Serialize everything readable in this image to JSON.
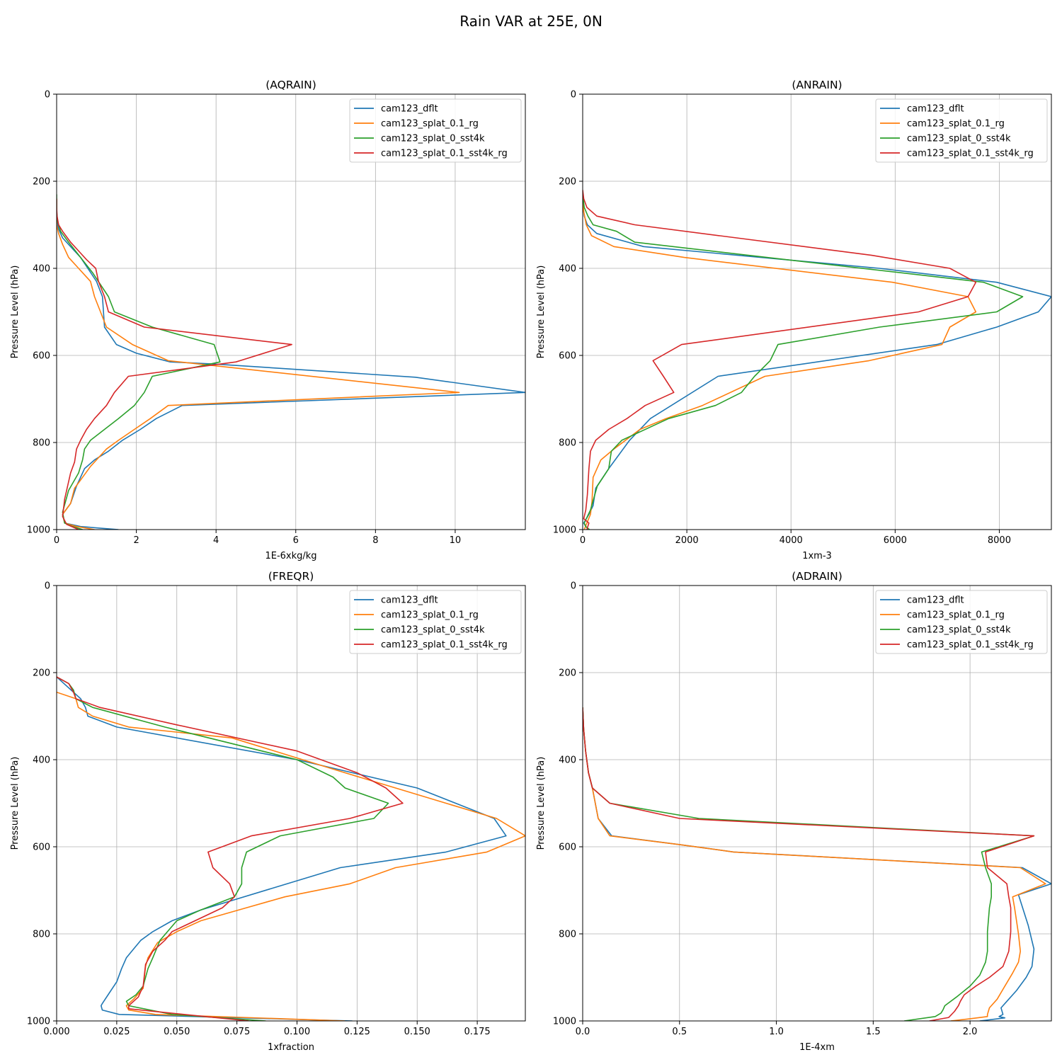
{
  "figure": {
    "title": "Rain VAR at 25E, 0N"
  },
  "series_colors": {
    "cam123_dflt": "#1f77b4",
    "cam123_splat_0.1_rg": "#ff7f0e",
    "cam123_splat_0_sst4k": "#2ca02c",
    "cam123_splat_0.1_sst4k_rg": "#d62728"
  },
  "chart_data": [
    {
      "type": "line",
      "title": "(AQRAIN)",
      "xlabel": "1E-6xkg/kg",
      "ylabel": "Pressure Level (hPa)",
      "xlim": [
        0,
        11.76
      ],
      "ylim": [
        1000,
        0
      ],
      "xticks": [
        0,
        2,
        4,
        6,
        8,
        10
      ],
      "xtick_labels": [
        "0",
        "2",
        "4",
        "6",
        "8",
        "10"
      ],
      "yticks": [
        0,
        200,
        400,
        600,
        800,
        1000
      ],
      "grid": true,
      "legend": "top-right",
      "series": [
        {
          "name": "cam123_dflt",
          "x": [
            0.0,
            0.0,
            0.01,
            0.05,
            0.15,
            0.35,
            0.6,
            1.0,
            1.15,
            1.2,
            1.5,
            2.0,
            2.85,
            4.0,
            9.0,
            11.76,
            3.15,
            2.5,
            2.1,
            1.65,
            1.3,
            0.95,
            0.7,
            0.5,
            0.35,
            0.15,
            0.2,
            0.6,
            1.55
          ],
          "y": [
            240,
            260,
            290,
            310,
            330,
            350,
            375,
            430,
            465,
            535,
            575,
            595,
            615,
            620,
            650,
            685,
            715,
            745,
            770,
            795,
            820,
            840,
            860,
            900,
            940,
            965,
            985,
            993,
            1000
          ]
        },
        {
          "name": "cam123_splat_0.1_rg",
          "x": [
            0.0,
            0.0,
            0.0,
            0.05,
            0.15,
            0.3,
            0.55,
            0.85,
            0.95,
            1.25,
            1.9,
            2.8,
            10.1,
            2.8,
            2.35,
            1.95,
            1.55,
            1.25,
            1.05,
            0.85,
            0.65,
            0.45,
            0.35,
            0.15,
            0.2,
            0.5,
            0.95
          ],
          "y": [
            240,
            270,
            300,
            320,
            345,
            375,
            400,
            430,
            465,
            535,
            575,
            612,
            685,
            715,
            745,
            770,
            795,
            815,
            835,
            855,
            880,
            905,
            940,
            965,
            985,
            993,
            1000
          ]
        },
        {
          "name": "cam123_splat_0_sst4k",
          "x": [
            0.0,
            0.0,
            0.02,
            0.05,
            0.1,
            0.3,
            0.6,
            0.9,
            1.3,
            1.45,
            2.4,
            3.95,
            4.1,
            2.4,
            2.2,
            1.95,
            1.55,
            1.2,
            0.85,
            0.7,
            0.65,
            0.55,
            0.3,
            0.15,
            0.2,
            0.4,
            0.65
          ],
          "y": [
            230,
            270,
            290,
            300,
            315,
            340,
            375,
            410,
            465,
            500,
            535,
            575,
            615,
            648,
            685,
            715,
            745,
            770,
            795,
            815,
            840,
            870,
            910,
            960,
            985,
            993,
            1000
          ]
        },
        {
          "name": "cam123_splat_0.1_sst4k_rg",
          "x": [
            0.0,
            0.0,
            0.01,
            0.05,
            0.15,
            0.35,
            0.6,
            0.75,
            0.98,
            1.05,
            1.2,
            1.3,
            2.2,
            5.9,
            4.5,
            1.8,
            1.45,
            1.25,
            0.95,
            0.75,
            0.6,
            0.5,
            0.45,
            0.35,
            0.2,
            0.15,
            0.25,
            0.55
          ],
          "y": [
            240,
            260,
            280,
            300,
            315,
            340,
            365,
            380,
            400,
            430,
            465,
            500,
            535,
            575,
            615,
            648,
            685,
            715,
            745,
            770,
            795,
            815,
            845,
            870,
            930,
            970,
            988,
            1000
          ]
        }
      ]
    },
    {
      "type": "line",
      "title": "(ANRAIN)",
      "xlabel": "1xm-3",
      "ylabel": "Pressure Level (hPa)",
      "xlim": [
        0,
        9000
      ],
      "ylim": [
        1000,
        0
      ],
      "xticks": [
        0,
        2000,
        4000,
        6000,
        8000
      ],
      "xtick_labels": [
        "0",
        "2000",
        "4000",
        "6000",
        "8000"
      ],
      "yticks": [
        0,
        200,
        400,
        600,
        800,
        1000
      ],
      "grid": true,
      "legend": "top-right",
      "series": [
        {
          "name": "cam123_dflt",
          "x": [
            0,
            30,
            90,
            270,
            1170,
            5700,
            7950,
            9000,
            8750,
            7950,
            6800,
            2600,
            1300,
            900,
            500,
            250,
            200,
            120,
            20,
            60,
            120
          ],
          "y": [
            250,
            280,
            300,
            320,
            350,
            400,
            432,
            465,
            500,
            535,
            575,
            648,
            745,
            795,
            860,
            905,
            945,
            965,
            985,
            993,
            1000
          ]
        },
        {
          "name": "cam123_splat_0.1_rg",
          "x": [
            0,
            20,
            70,
            170,
            600,
            1950,
            5950,
            7400,
            7550,
            7050,
            6900,
            5500,
            3500,
            2300,
            1600,
            1100,
            600,
            350,
            200,
            180,
            150,
            80,
            30
          ],
          "y": [
            240,
            270,
            300,
            325,
            350,
            375,
            432,
            465,
            500,
            535,
            575,
            612,
            648,
            715,
            745,
            770,
            815,
            840,
            880,
            935,
            965,
            985,
            1000
          ]
        },
        {
          "name": "cam123_splat_0_sst4k",
          "x": [
            0,
            30,
            100,
            200,
            650,
            1000,
            7700,
            8450,
            7950,
            5700,
            3750,
            3600,
            3300,
            3050,
            2550,
            1650,
            750,
            550,
            500,
            280,
            150,
            30,
            60,
            130
          ],
          "y": [
            230,
            260,
            280,
            300,
            315,
            340,
            432,
            465,
            500,
            535,
            575,
            612,
            648,
            685,
            715,
            745,
            795,
            820,
            860,
            900,
            955,
            985,
            993,
            1000
          ]
        },
        {
          "name": "cam123_splat_0.1_sst4k_rg",
          "x": [
            0,
            20,
            80,
            270,
            1000,
            5550,
            7050,
            7550,
            7400,
            6450,
            1900,
            1350,
            1550,
            1750,
            1200,
            850,
            500,
            250,
            150,
            120,
            90,
            60,
            20,
            120,
            80
          ],
          "y": [
            220,
            240,
            260,
            280,
            300,
            370,
            400,
            432,
            465,
            500,
            575,
            612,
            648,
            685,
            715,
            745,
            770,
            795,
            820,
            860,
            920,
            955,
            975,
            985,
            1000
          ]
        }
      ]
    },
    {
      "type": "line",
      "title": "(FREQR)",
      "xlabel": "1xfraction",
      "ylabel": "Pressure Level (hPa)",
      "xlim": [
        0,
        0.195
      ],
      "ylim": [
        1000,
        0
      ],
      "xticks": [
        0.0,
        0.025,
        0.05,
        0.075,
        0.1,
        0.125,
        0.15,
        0.175
      ],
      "xtick_labels": [
        "0.000",
        "0.025",
        "0.050",
        "0.075",
        "0.100",
        "0.125",
        "0.150",
        "0.175"
      ],
      "yticks": [
        0,
        200,
        400,
        600,
        800,
        1000
      ],
      "grid": true,
      "legend": "top-right",
      "series": [
        {
          "name": "cam123_dflt",
          "x": [
            0.0,
            0.01,
            0.012,
            0.013,
            0.025,
            0.1,
            0.15,
            0.182,
            0.187,
            0.162,
            0.118,
            0.06,
            0.048,
            0.04,
            0.035,
            0.032,
            0.029,
            0.027,
            0.025,
            0.022,
            0.019,
            0.0185,
            0.019,
            0.026,
            0.123
          ],
          "y": [
            210,
            260,
            280,
            300,
            325,
            400,
            465,
            535,
            575,
            612,
            648,
            745,
            770,
            795,
            815,
            835,
            855,
            880,
            910,
            935,
            960,
            965,
            975,
            985,
            1000
          ]
        },
        {
          "name": "cam123_splat_0.1_rg",
          "x": [
            0.0,
            0.008,
            0.009,
            0.015,
            0.03,
            0.073,
            0.12,
            0.183,
            0.195,
            0.179,
            0.141,
            0.122,
            0.095,
            0.079,
            0.06,
            0.05,
            0.042,
            0.038,
            0.037,
            0.036,
            0.032,
            0.029,
            0.03,
            0.041,
            0.12
          ],
          "y": [
            245,
            260,
            280,
            300,
            325,
            350,
            430,
            535,
            575,
            612,
            648,
            685,
            715,
            740,
            770,
            795,
            820,
            855,
            875,
            925,
            950,
            965,
            975,
            985,
            1000
          ]
        },
        {
          "name": "cam123_splat_0_sst4k",
          "x": [
            0.0,
            0.005,
            0.007,
            0.008,
            0.015,
            0.045,
            0.1,
            0.115,
            0.12,
            0.138,
            0.132,
            0.093,
            0.079,
            0.077,
            0.077,
            0.074,
            0.06,
            0.05,
            0.043,
            0.04,
            0.038,
            0.036,
            0.033,
            0.029,
            0.03,
            0.048,
            0.087
          ],
          "y": [
            210,
            225,
            240,
            260,
            280,
            325,
            400,
            440,
            465,
            500,
            535,
            575,
            612,
            648,
            685,
            715,
            745,
            770,
            815,
            855,
            880,
            920,
            940,
            955,
            965,
            985,
            1000
          ]
        },
        {
          "name": "cam123_splat_0.1_sst4k_rg",
          "x": [
            0.0,
            0.005,
            0.007,
            0.008,
            0.018,
            0.05,
            0.1,
            0.125,
            0.137,
            0.144,
            0.122,
            0.081,
            0.063,
            0.065,
            0.072,
            0.074,
            0.069,
            0.048,
            0.045,
            0.04,
            0.037,
            0.036,
            0.034,
            0.03,
            0.03,
            0.053,
            0.08
          ],
          "y": [
            210,
            225,
            245,
            260,
            280,
            320,
            380,
            430,
            465,
            500,
            535,
            575,
            612,
            648,
            685,
            715,
            740,
            795,
            815,
            840,
            870,
            920,
            945,
            965,
            972,
            985,
            1000
          ]
        }
      ]
    },
    {
      "type": "line",
      "title": "(ADRAIN)",
      "xlabel": "1E-4xm",
      "ylabel": "Pressure Level (hPa)",
      "xlim": [
        0,
        2.42
      ],
      "ylim": [
        1000,
        0
      ],
      "xticks": [
        0.0,
        0.5,
        1.0,
        1.5,
        2.0
      ],
      "xtick_labels": [
        "0.0",
        "0.5",
        "1.0",
        "1.5",
        "2.0"
      ],
      "yticks": [
        0,
        200,
        400,
        600,
        800,
        1000
      ],
      "grid": true,
      "legend": "top-right",
      "series": [
        {
          "name": "cam123_dflt",
          "x": [
            0.0,
            0.005,
            0.015,
            0.03,
            0.05,
            0.08,
            0.15,
            0.5,
            0.78,
            2.27,
            2.42,
            2.25,
            2.3,
            2.33,
            2.32,
            2.29,
            2.24,
            2.19,
            2.16,
            2.17,
            2.15,
            2.18,
            2.05
          ],
          "y": [
            280,
            330,
            380,
            430,
            465,
            535,
            575,
            595,
            612,
            648,
            685,
            710,
            780,
            835,
            875,
            900,
            930,
            955,
            970,
            985,
            990,
            993,
            1000
          ]
        },
        {
          "name": "cam123_splat_0.1_rg",
          "x": [
            0.0,
            0.005,
            0.015,
            0.03,
            0.05,
            0.08,
            0.14,
            0.5,
            0.78,
            2.26,
            2.39,
            2.22,
            2.23,
            2.25,
            2.26,
            2.25,
            2.22,
            2.18,
            2.14,
            2.1,
            2.09,
            2.09,
            2.0,
            1.9
          ],
          "y": [
            280,
            330,
            380,
            430,
            465,
            535,
            575,
            595,
            612,
            648,
            685,
            715,
            740,
            800,
            840,
            865,
            890,
            920,
            950,
            970,
            985,
            990,
            995,
            1000
          ]
        },
        {
          "name": "cam123_splat_0_sst4k",
          "x": [
            0.0,
            0.005,
            0.015,
            0.03,
            0.05,
            0.14,
            0.6,
            2.33,
            2.06,
            2.08,
            2.11,
            2.11,
            2.1,
            2.09,
            2.09,
            2.08,
            2.05,
            2.0,
            1.93,
            1.87,
            1.86,
            1.85,
            1.82,
            1.66
          ],
          "y": [
            280,
            330,
            380,
            430,
            465,
            500,
            535,
            575,
            612,
            648,
            685,
            715,
            740,
            795,
            840,
            865,
            895,
            920,
            945,
            965,
            975,
            982,
            990,
            1000
          ]
        },
        {
          "name": "cam123_splat_0.1_sst4k_rg",
          "x": [
            0.0,
            0.005,
            0.015,
            0.03,
            0.05,
            0.14,
            0.5,
            2.33,
            2.08,
            2.09,
            2.19,
            2.2,
            2.21,
            2.21,
            2.2,
            2.17,
            2.1,
            2.03,
            1.97,
            1.95,
            1.94,
            1.92,
            1.89,
            1.79
          ],
          "y": [
            280,
            330,
            380,
            430,
            465,
            500,
            535,
            575,
            612,
            648,
            685,
            715,
            740,
            795,
            840,
            875,
            900,
            920,
            940,
            955,
            965,
            978,
            992,
            1000
          ]
        }
      ]
    }
  ]
}
